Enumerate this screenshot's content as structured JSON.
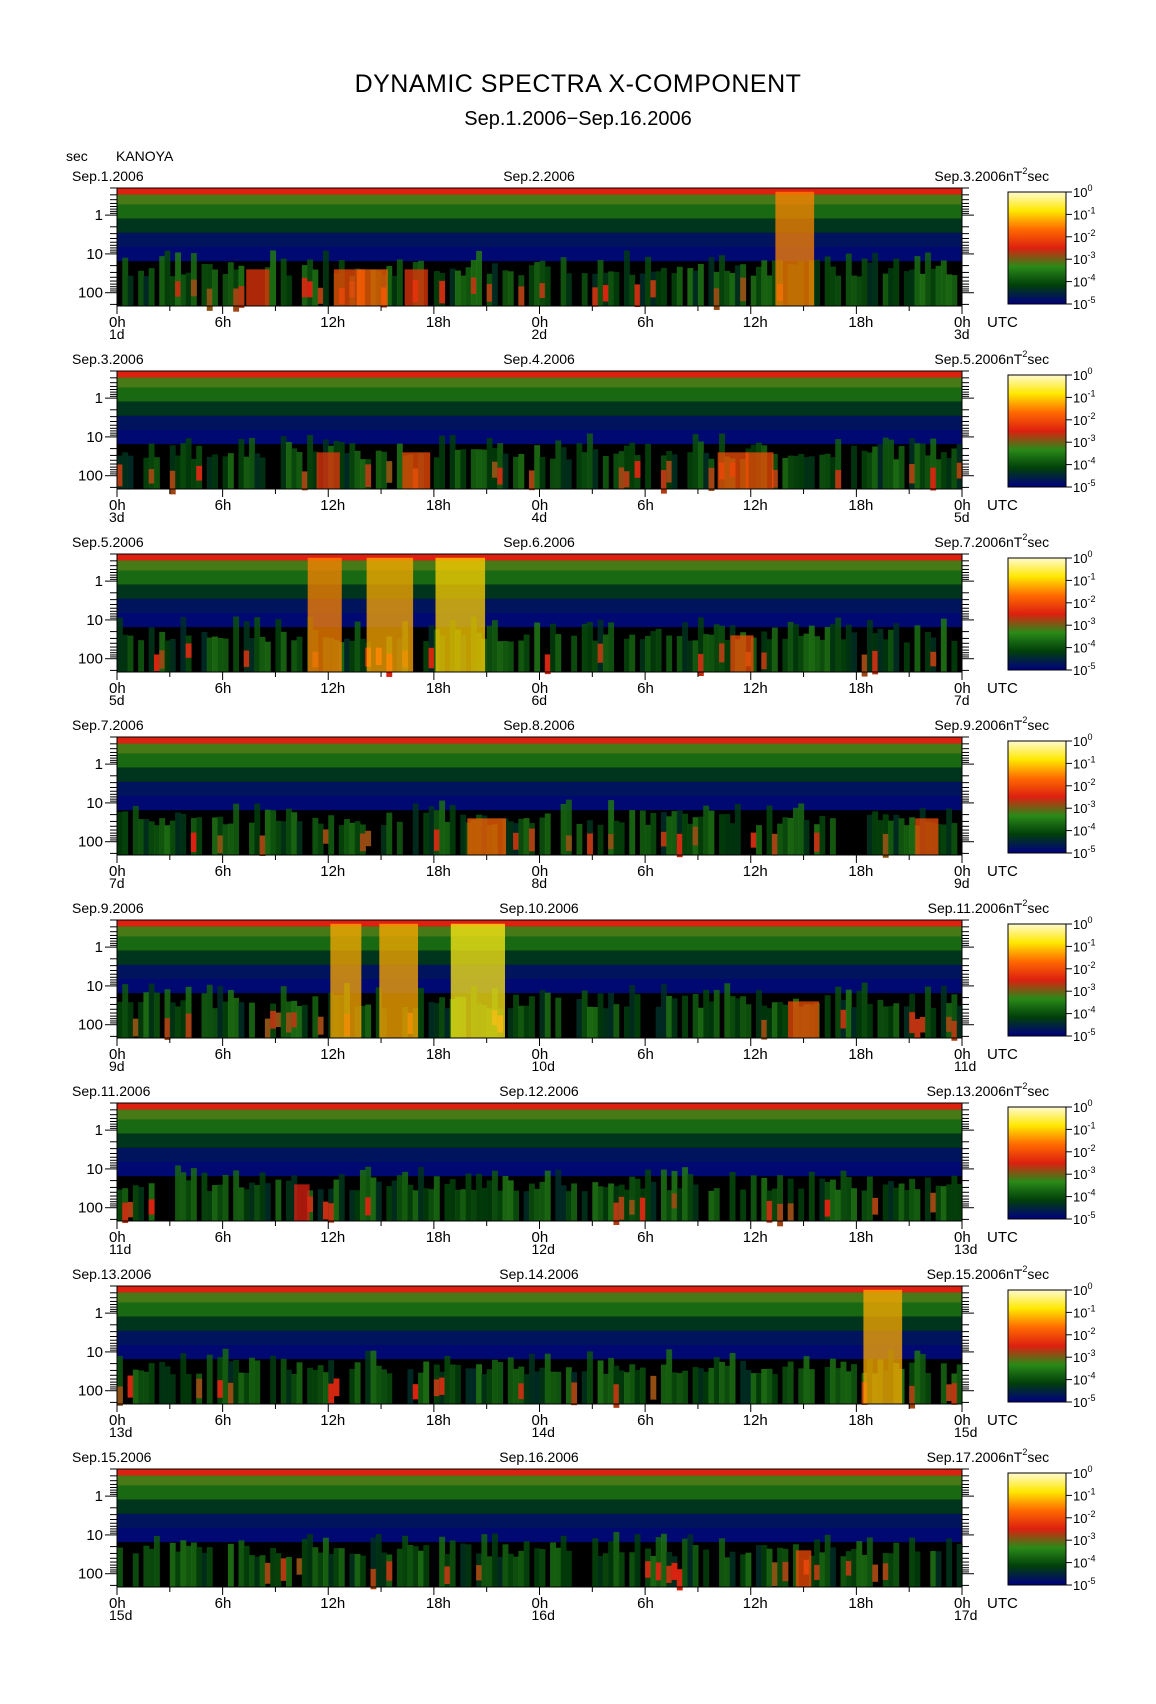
{
  "title": "DYNAMIC SPECTRA X-COMPONENT",
  "subtitle": "Sep.1.2006−Sep.16.2006",
  "y_unit": "sec",
  "station": "KANOYA",
  "chart_data": {
    "type": "heatmap",
    "x_unit": "UTC",
    "y_unit": "sec",
    "y_scale": "log",
    "y_ticks": [
      "1",
      "10",
      "100"
    ],
    "x_tick_labels": [
      "0h",
      "6h",
      "12h",
      "18h",
      "0h",
      "6h",
      "12h",
      "18h",
      "0h"
    ],
    "colorbar": {
      "unit_base": "nT",
      "unit_exp": "2",
      "unit_tail": "sec",
      "scale": "log",
      "ticks": [
        {
          "base": "10",
          "exp": "0"
        },
        {
          "base": "10",
          "exp": "-1"
        },
        {
          "base": "10",
          "exp": "-2"
        },
        {
          "base": "10",
          "exp": "-3"
        },
        {
          "base": "10",
          "exp": "-4"
        },
        {
          "base": "10",
          "exp": "-5"
        }
      ],
      "colors": [
        "#000080",
        "#003f0a",
        "#2a8a18",
        "#dd2010",
        "#ff6a00",
        "#ffe800",
        "#fffbd0"
      ]
    },
    "panels": [
      {
        "date_left": "Sep.1.2006",
        "date_mid": "Sep.2.2006",
        "date_right": "Sep.3.2006",
        "day_left": "1d",
        "day_mid": "2d",
        "day_right": "3d",
        "events": [
          [
            13.2,
            0.3,
            2
          ],
          [
            14.5,
            0.4,
            2
          ],
          [
            38.5,
            0.5,
            2.5
          ],
          [
            17,
            0.2,
            1.5
          ],
          [
            8,
            0.2,
            1.5
          ]
        ]
      },
      {
        "date_left": "Sep.3.2006",
        "date_mid": "Sep.4.2006",
        "date_right": "Sep.5.2006",
        "day_left": "3d",
        "day_mid": "4d",
        "day_right": "5d",
        "events": [
          [
            12,
            0.2,
            1.5
          ],
          [
            17,
            0.3,
            1.8
          ],
          [
            35,
            0.3,
            2
          ],
          [
            36.5,
            0.3,
            1.8
          ]
        ]
      },
      {
        "date_left": "Sep.5.2006",
        "date_mid": "Sep.6.2006",
        "date_right": "Sep.7.2006",
        "day_left": "5d",
        "day_mid": "6d",
        "day_right": "7d",
        "events": [
          [
            11.8,
            0.5,
            2.2
          ],
          [
            15.5,
            0.6,
            3
          ],
          [
            19.5,
            0.7,
            3.2
          ],
          [
            35.5,
            0.3,
            1.5
          ]
        ]
      },
      {
        "date_left": "Sep.7.2006",
        "date_mid": "Sep.8.2006",
        "date_right": "Sep.9.2006",
        "day_left": "7d",
        "day_mid": "8d",
        "day_right": "9d",
        "events": [
          [
            21,
            0.4,
            2.5
          ],
          [
            46,
            0.3,
            1.5
          ]
        ]
      },
      {
        "date_left": "Sep.9.2006",
        "date_mid": "Sep.10.2006",
        "date_right": "Sep.11.2006",
        "day_left": "9d",
        "day_mid": "10d",
        "day_right": "11d",
        "events": [
          [
            13,
            0.6,
            2
          ],
          [
            16,
            0.6,
            2.5
          ],
          [
            20.5,
            0.8,
            3.5
          ],
          [
            39,
            0.3,
            2
          ]
        ]
      },
      {
        "date_left": "Sep.11.2006",
        "date_mid": "Sep.12.2006",
        "date_right": "Sep.13.2006",
        "day_left": "11d",
        "day_mid": "12d",
        "day_right": "13d",
        "events": [
          [
            10.5,
            0.1,
            1
          ]
        ]
      },
      {
        "date_left": "Sep.13.2006",
        "date_mid": "Sep.14.2006",
        "date_right": "Sep.15.2006",
        "day_left": "13d",
        "day_mid": "14d",
        "day_right": "15d",
        "events": [
          [
            43.5,
            0.6,
            2.5
          ]
        ]
      },
      {
        "date_left": "Sep.15.2006",
        "date_mid": "Sep.16.2006",
        "date_right": "Sep.17.2006",
        "day_left": "15d",
        "day_mid": "16d",
        "day_right": "17d",
        "events": [
          [
            39,
            0.3,
            1
          ]
        ]
      }
    ]
  }
}
